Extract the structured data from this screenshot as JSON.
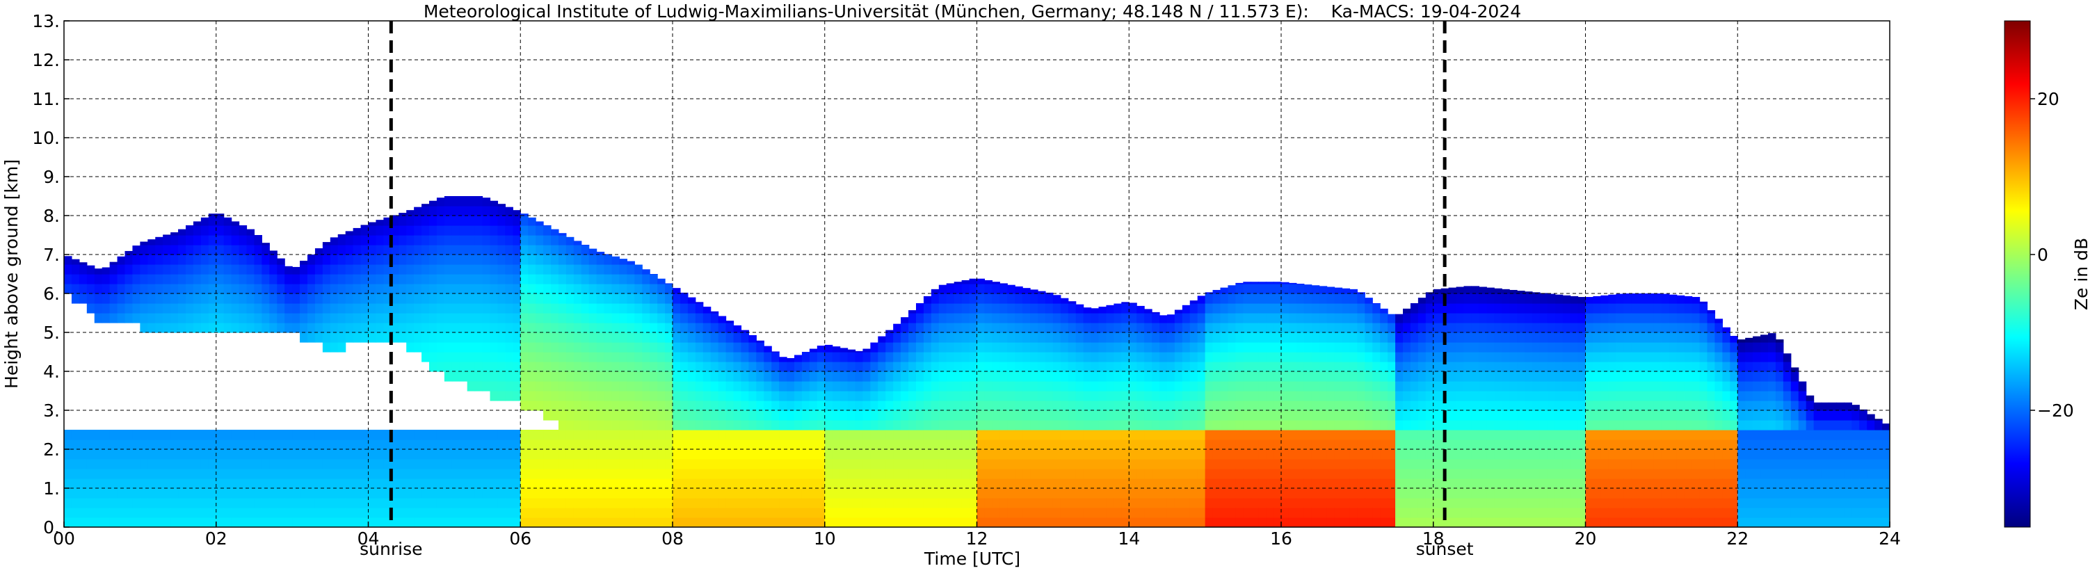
{
  "chart_data": {
    "type": "heatmap",
    "title": "Meteorological Institute of Ludwig-Maximilians-Universität (München, Germany; 48.148 N / 11.573 E):    Ka-MACS: 19-04-2024",
    "xlabel": "Time [UTC]",
    "ylabel": "Height above ground [km]",
    "xlim": [
      0,
      24
    ],
    "ylim": [
      0,
      13
    ],
    "x_ticks": [
      0,
      2,
      4,
      6,
      8,
      10,
      12,
      14,
      16,
      18,
      20,
      22,
      24
    ],
    "x_tick_labels": [
      "00",
      "02",
      "04",
      "06",
      "08",
      "10",
      "12",
      "14",
      "16",
      "18",
      "20",
      "22",
      "24"
    ],
    "y_ticks": [
      0,
      1,
      2,
      3,
      4,
      5,
      6,
      7,
      8,
      9,
      10,
      11,
      12,
      13
    ],
    "y_tick_labels": [
      "0.",
      "1.",
      "2.",
      "3.",
      "4.",
      "5.",
      "6.",
      "7.",
      "8.",
      "9.",
      "10.",
      "11.",
      "12.",
      "13."
    ],
    "grid": true,
    "colorbar": {
      "label": "Ze in dB",
      "range": [
        -35,
        30
      ],
      "ticks": [
        20,
        0,
        -20
      ],
      "tick_labels": [
        "20",
        "0",
        "−20"
      ],
      "colormap": "jet"
    },
    "markers": [
      {
        "name": "sunrise",
        "time": 4.3,
        "label": "sunrise"
      },
      {
        "name": "sunset",
        "time": 18.15,
        "label": "sunset"
      }
    ],
    "cloud_top_km": [
      [
        0.0,
        7.0
      ],
      [
        0.5,
        6.6
      ],
      [
        1.0,
        7.3
      ],
      [
        1.5,
        7.6
      ],
      [
        2.0,
        8.1
      ],
      [
        2.5,
        7.6
      ],
      [
        3.0,
        6.6
      ],
      [
        3.5,
        7.4
      ],
      [
        4.0,
        7.8
      ],
      [
        4.5,
        8.1
      ],
      [
        5.0,
        8.5
      ],
      [
        5.5,
        8.5
      ],
      [
        6.0,
        8.1
      ],
      [
        6.5,
        7.6
      ],
      [
        7.0,
        7.1
      ],
      [
        7.5,
        6.8
      ],
      [
        8.0,
        6.2
      ],
      [
        8.5,
        5.6
      ],
      [
        9.0,
        5.0
      ],
      [
        9.5,
        4.3
      ],
      [
        10.0,
        4.7
      ],
      [
        10.5,
        4.5
      ],
      [
        11.0,
        5.3
      ],
      [
        11.5,
        6.2
      ],
      [
        12.0,
        6.4
      ],
      [
        12.5,
        6.2
      ],
      [
        13.0,
        6.0
      ],
      [
        13.5,
        5.6
      ],
      [
        14.0,
        5.8
      ],
      [
        14.5,
        5.4
      ],
      [
        15.0,
        6.0
      ],
      [
        15.5,
        6.3
      ],
      [
        16.0,
        6.3
      ],
      [
        16.5,
        6.2
      ],
      [
        17.0,
        6.1
      ],
      [
        17.5,
        5.4
      ],
      [
        18.0,
        6.1
      ],
      [
        18.5,
        6.2
      ],
      [
        19.0,
        6.1
      ],
      [
        19.5,
        6.0
      ],
      [
        20.0,
        5.9
      ],
      [
        20.5,
        6.0
      ],
      [
        21.0,
        6.0
      ],
      [
        21.5,
        5.9
      ],
      [
        22.0,
        4.8
      ],
      [
        22.5,
        5.0
      ],
      [
        23.0,
        3.2
      ],
      [
        23.5,
        3.2
      ],
      [
        24.0,
        2.6
      ]
    ],
    "cloud_base_km": [
      [
        0.0,
        6.0
      ],
      [
        0.5,
        5.1
      ],
      [
        1.0,
        5.0
      ],
      [
        1.5,
        5.0
      ],
      [
        2.0,
        5.0
      ],
      [
        2.5,
        5.0
      ],
      [
        3.0,
        4.9
      ],
      [
        3.5,
        4.4
      ],
      [
        4.0,
        4.6
      ],
      [
        4.5,
        4.5
      ],
      [
        5.0,
        3.7
      ],
      [
        5.5,
        3.3
      ],
      [
        6.0,
        3.0
      ],
      [
        6.5,
        2.6
      ],
      [
        7.0,
        0.0
      ],
      [
        24.0,
        0.0
      ]
    ],
    "low_layer_top_km": 2.5,
    "reflectivity_profile_dB": [
      {
        "time_range": [
          0.0,
          6.0
        ],
        "upper_layer_dB": -18,
        "low_layer_dB": -12
      },
      {
        "time_range": [
          6.0,
          8.0
        ],
        "upper_layer_dB": -10,
        "low_layer_dB": 8
      },
      {
        "time_range": [
          8.0,
          10.0
        ],
        "upper_layer_dB": -15,
        "low_layer_dB": 10
      },
      {
        "time_range": [
          10.0,
          12.0
        ],
        "upper_layer_dB": -16,
        "low_layer_dB": 6
      },
      {
        "time_range": [
          12.0,
          15.0
        ],
        "upper_layer_dB": -15,
        "low_layer_dB": 15
      },
      {
        "time_range": [
          15.0,
          17.5
        ],
        "upper_layer_dB": -12,
        "low_layer_dB": 20
      },
      {
        "time_range": [
          17.5,
          20.0
        ],
        "upper_layer_dB": -20,
        "low_layer_dB": 0
      },
      {
        "time_range": [
          20.0,
          22.0
        ],
        "upper_layer_dB": -15,
        "low_layer_dB": 18
      },
      {
        "time_range": [
          22.0,
          24.0
        ],
        "upper_layer_dB": -22,
        "low_layer_dB": -15
      }
    ]
  }
}
